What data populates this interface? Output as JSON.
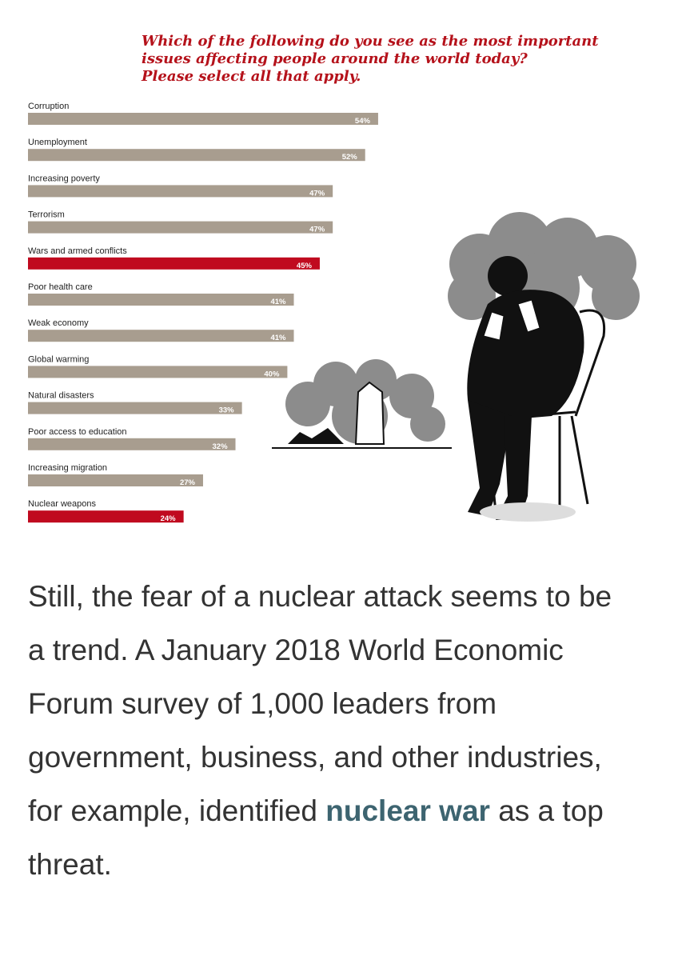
{
  "chart_data": {
    "type": "bar",
    "orientation": "horizontal",
    "title_lines": [
      "Which of the following do you see as the most important",
      "issues affecting people around the world today?",
      "Please select all that apply."
    ],
    "categories": [
      "Corruption",
      "Unemployment",
      "Increasing poverty",
      "Terrorism",
      "Wars and armed conflicts",
      "Poor health care",
      "Weak economy",
      "Global warming",
      "Natural disasters",
      "Poor access to education",
      "Increasing migration",
      "Nuclear weapons"
    ],
    "values": [
      54,
      52,
      47,
      47,
      45,
      41,
      41,
      40,
      33,
      32,
      27,
      24
    ],
    "value_labels": [
      "54%",
      "52%",
      "47%",
      "47%",
      "45%",
      "41%",
      "41%",
      "40%",
      "33%",
      "32%",
      "27%",
      "24%"
    ],
    "colors": [
      "#a89d8f",
      "#a89d8f",
      "#a89d8f",
      "#a89d8f",
      "#c00a1f",
      "#a89d8f",
      "#a89d8f",
      "#a89d8f",
      "#a89d8f",
      "#a89d8f",
      "#a89d8f",
      "#c00a1f"
    ]
  },
  "article": {
    "text_before": "Still, the fear of a nuclear attack seems to be a trend. A January 2018 World Economic Forum survey of 1,000 leaders from government, business, and other industries, for example, identified ",
    "link": "nuclear war",
    "text_after": " as a top threat."
  }
}
